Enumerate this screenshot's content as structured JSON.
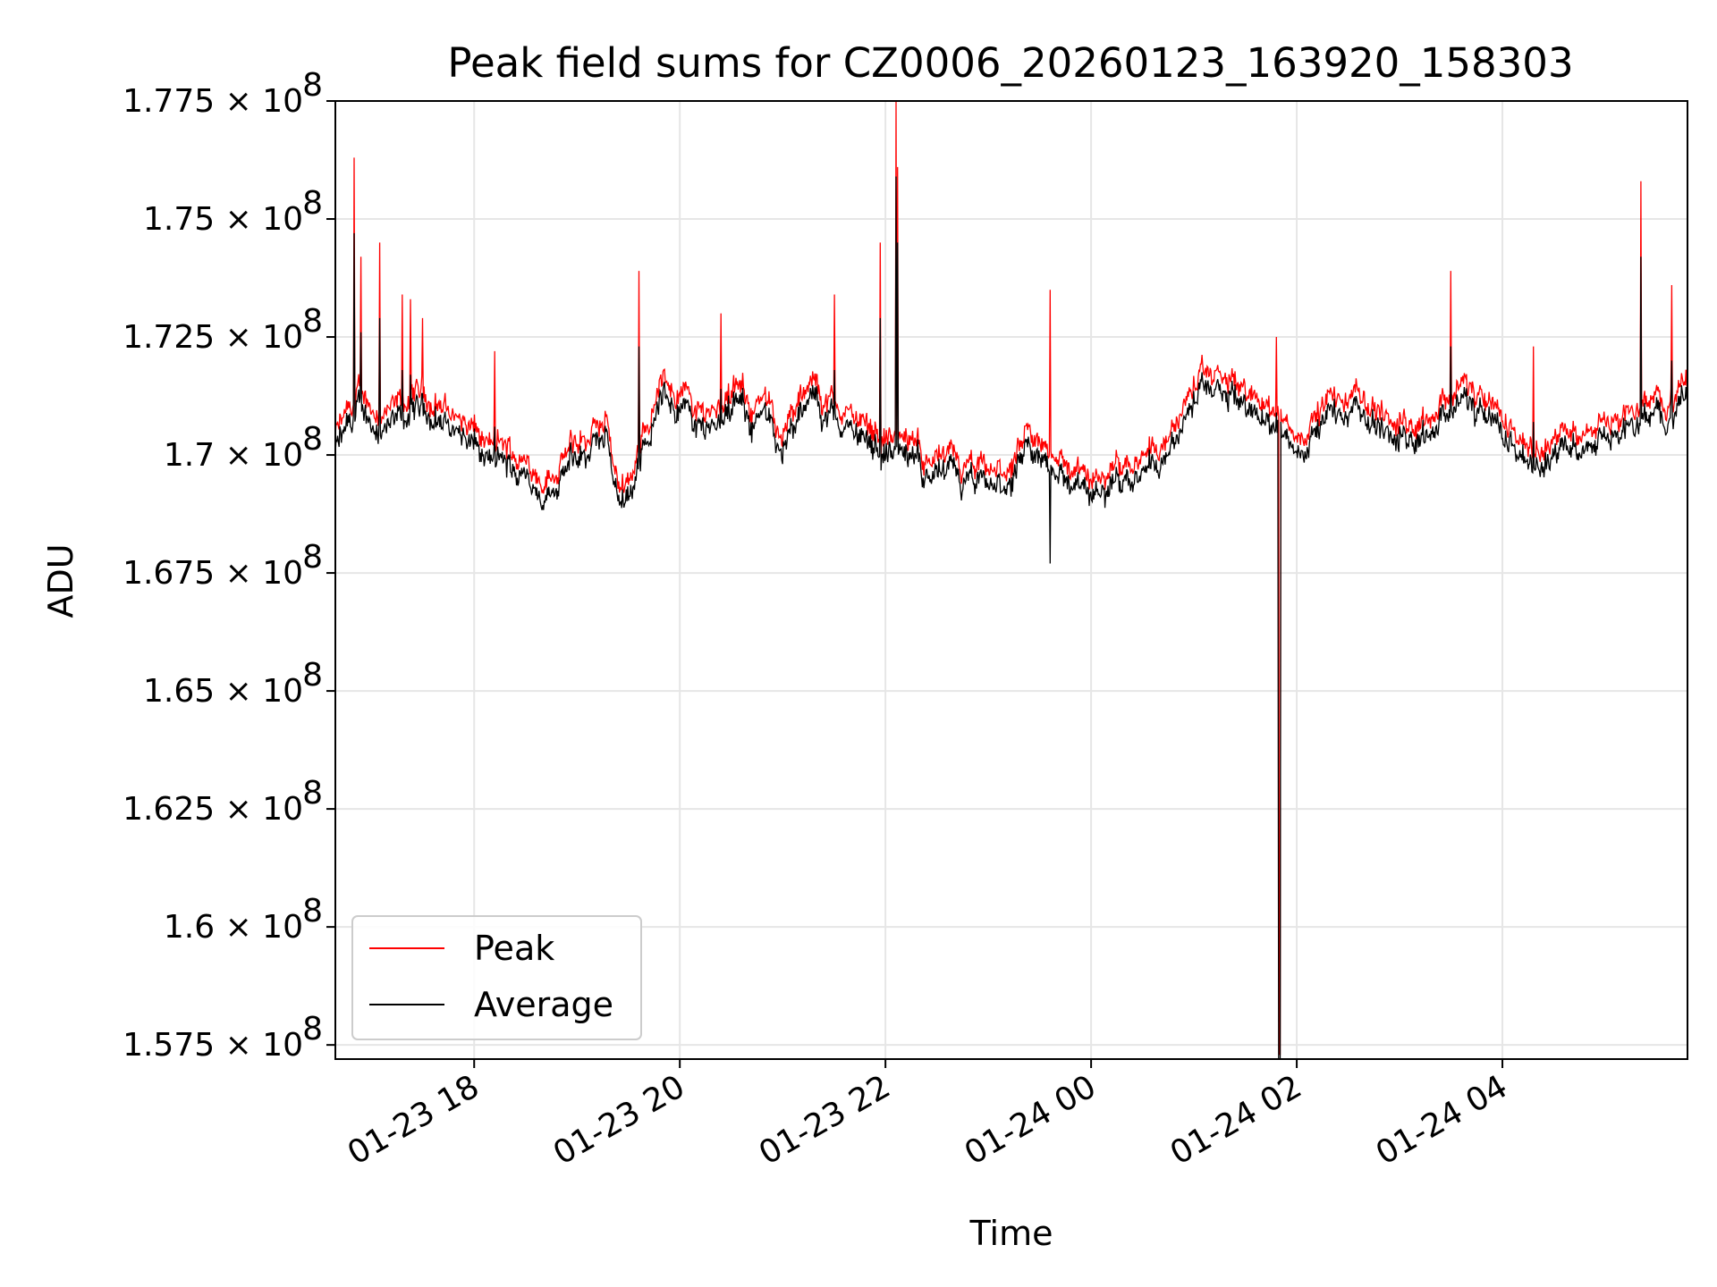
{
  "chart_data": {
    "type": "line",
    "title": "Peak field sums for CZ0006_20260123_163920_158303",
    "xlabel": "Time",
    "ylabel": "ADU",
    "xlim_hours": [
      16.65,
      29.8
    ],
    "ylim": [
      157200000,
      177500000
    ],
    "grid": true,
    "legend_position": "lower-left",
    "x_ticks": [
      {
        "hour": 18,
        "label": "01-23 18"
      },
      {
        "hour": 20,
        "label": "01-23 20"
      },
      {
        "hour": 22,
        "label": "01-23 22"
      },
      {
        "hour": 24,
        "label": "01-24 00"
      },
      {
        "hour": 26,
        "label": "01-24 02"
      },
      {
        "hour": 28,
        "label": "01-24 04"
      }
    ],
    "y_ticks": [
      {
        "value": 157500000,
        "label": "1.575 × 10",
        "exp": "8"
      },
      {
        "value": 160000000,
        "label": "1.6 × 10",
        "exp": "8"
      },
      {
        "value": 162500000,
        "label": "1.625 × 10",
        "exp": "8"
      },
      {
        "value": 165000000,
        "label": "1.65 × 10",
        "exp": "8"
      },
      {
        "value": 167500000,
        "label": "1.675 × 10",
        "exp": "8"
      },
      {
        "value": 170000000,
        "label": "1.7 × 10",
        "exp": "8"
      },
      {
        "value": 172500000,
        "label": "1.725 × 10",
        "exp": "8"
      },
      {
        "value": 175000000,
        "label": "1.75 × 10",
        "exp": "8"
      },
      {
        "value": 177500000,
        "label": "1.775 × 10",
        "exp": "8"
      }
    ],
    "series": [
      {
        "name": "Peak",
        "color": "#ff0000",
        "baseline": [
          [
            16.65,
            170.4
          ],
          [
            16.9,
            171.2
          ],
          [
            17.2,
            170.8
          ],
          [
            17.5,
            171.3
          ],
          [
            17.8,
            170.9
          ],
          [
            18.1,
            170.2
          ],
          [
            18.4,
            170.0
          ],
          [
            18.7,
            169.6
          ],
          [
            19.0,
            170.2
          ],
          [
            19.3,
            170.6
          ],
          [
            19.4,
            169.3
          ],
          [
            19.6,
            170.0
          ],
          [
            19.8,
            171.6
          ],
          [
            20.0,
            171.4
          ],
          [
            20.2,
            170.9
          ],
          [
            20.5,
            171.3
          ],
          [
            20.8,
            171.0
          ],
          [
            21.0,
            170.6
          ],
          [
            21.3,
            171.4
          ],
          [
            21.6,
            170.9
          ],
          [
            21.9,
            170.6
          ],
          [
            22.2,
            170.2
          ],
          [
            22.5,
            169.9
          ],
          [
            22.8,
            169.6
          ],
          [
            23.1,
            169.5
          ],
          [
            23.4,
            170.2
          ],
          [
            23.7,
            170.0
          ],
          [
            24.0,
            169.3
          ],
          [
            24.3,
            169.9
          ],
          [
            24.6,
            170.3
          ],
          [
            24.8,
            170.5
          ],
          [
            25.0,
            171.5
          ],
          [
            25.3,
            171.6
          ],
          [
            25.6,
            171.2
          ],
          [
            25.82,
            170.9
          ],
          [
            26.0,
            170.4
          ],
          [
            26.3,
            171.1
          ],
          [
            26.6,
            171.2
          ],
          [
            27.0,
            170.7
          ],
          [
            27.3,
            170.9
          ],
          [
            27.6,
            171.6
          ],
          [
            27.9,
            170.8
          ],
          [
            28.2,
            170.4
          ],
          [
            28.5,
            170.3
          ],
          [
            28.9,
            170.7
          ],
          [
            29.2,
            170.9
          ],
          [
            29.5,
            171.2
          ],
          [
            29.8,
            171.4
          ]
        ],
        "spikes": [
          [
            16.83,
            176.3
          ],
          [
            16.9,
            174.2
          ],
          [
            17.08,
            174.5
          ],
          [
            17.3,
            173.4
          ],
          [
            17.38,
            173.3
          ],
          [
            17.5,
            172.9
          ],
          [
            18.2,
            172.2
          ],
          [
            19.6,
            173.9
          ],
          [
            20.4,
            173.0
          ],
          [
            21.5,
            173.4
          ],
          [
            21.95,
            174.5
          ],
          [
            22.1,
            177.5
          ],
          [
            22.12,
            176.1
          ],
          [
            23.6,
            173.5
          ],
          [
            25.8,
            172.5
          ],
          [
            27.5,
            173.9
          ],
          [
            28.3,
            172.3
          ],
          [
            29.35,
            175.8
          ],
          [
            29.65,
            173.6
          ]
        ]
      },
      {
        "name": "Average",
        "color": "#000000",
        "baseline_offset": -0.25,
        "dips": [
          [
            23.6,
            167.7
          ],
          [
            25.83,
            157.2
          ]
        ]
      }
    ]
  }
}
